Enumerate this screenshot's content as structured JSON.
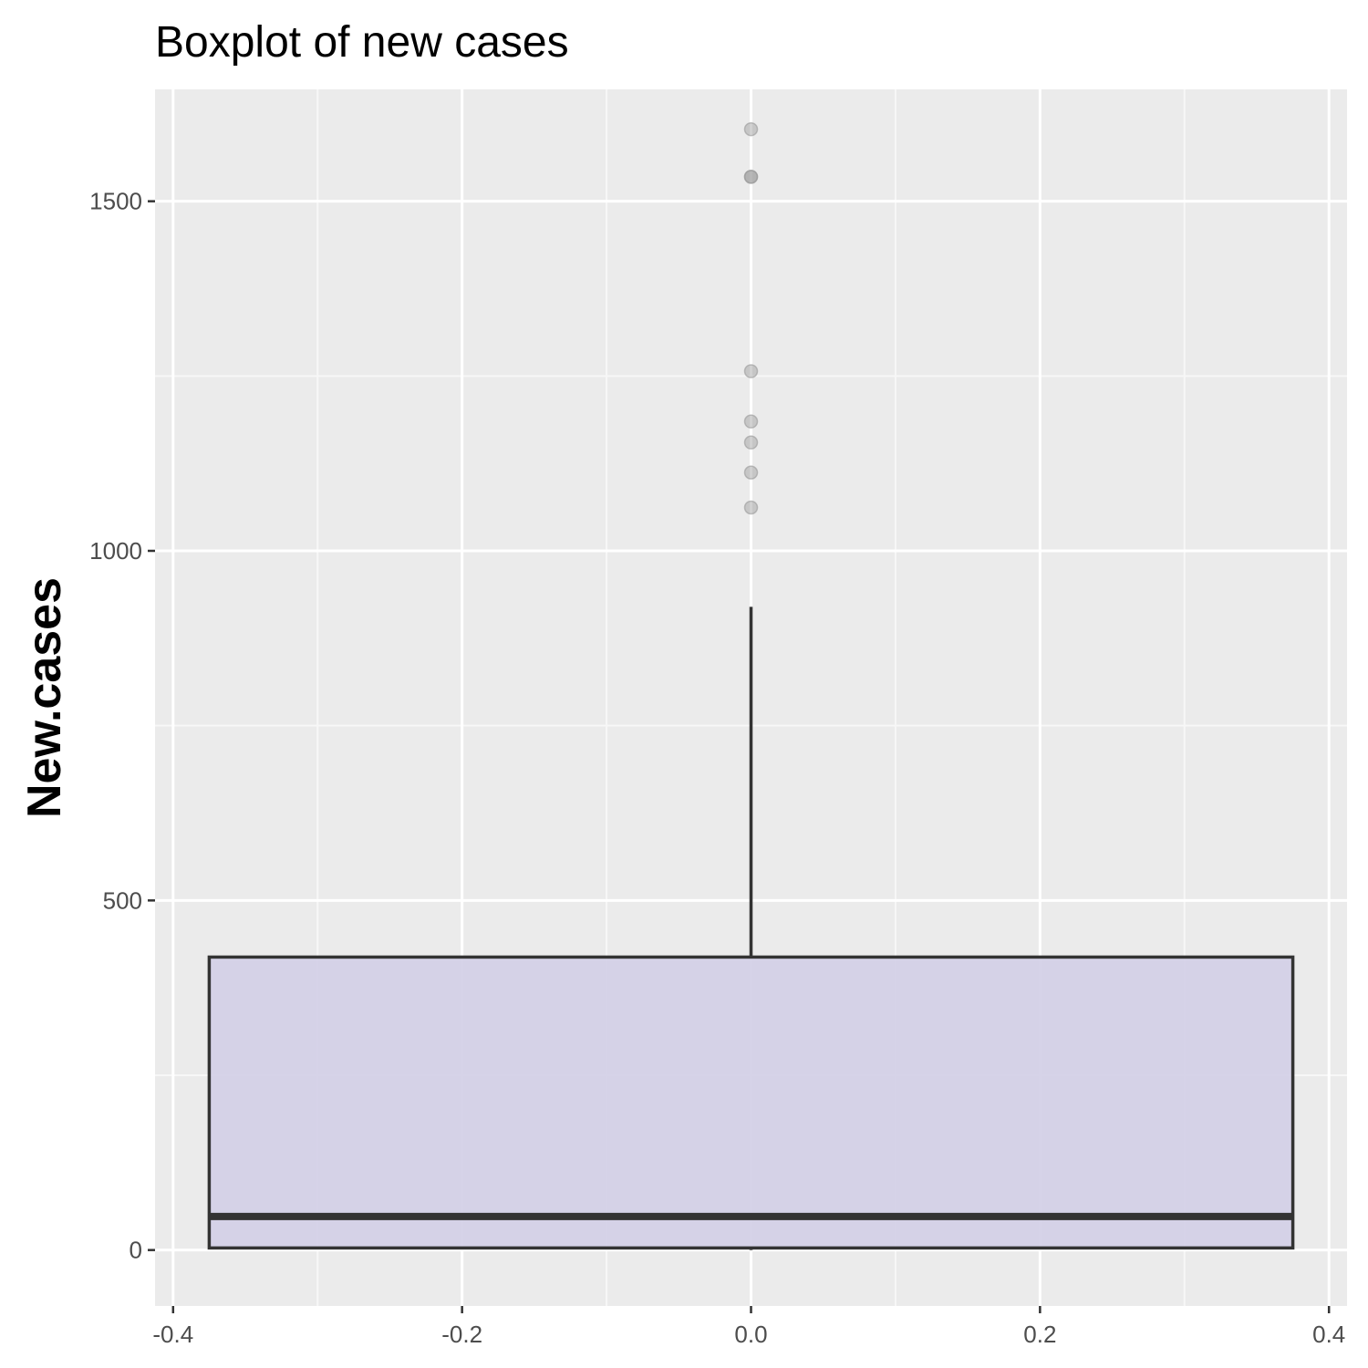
{
  "chart_data": {
    "type": "boxplot",
    "title": "Boxplot of new cases",
    "xlabel": "",
    "ylabel": "New.cases",
    "xlim": [
      -0.4125,
      0.4125
    ],
    "ylim": [
      -80,
      1660
    ],
    "x_ticks": [
      -0.4,
      -0.2,
      0.0,
      0.2,
      0.4
    ],
    "x_tick_labels": [
      "-0.4",
      "-0.2",
      "0.0",
      "0.2",
      "0.4"
    ],
    "y_ticks": [
      0,
      500,
      1000,
      1500
    ],
    "y_tick_labels": [
      "0",
      "500",
      "1000",
      "1500"
    ],
    "grid": true,
    "box": {
      "x_center": 0.0,
      "x_min": -0.375,
      "x_max": 0.375,
      "min": 0,
      "q1": 3,
      "median": 48,
      "q3": 419,
      "whisker_high": 920,
      "outliers": [
        1603,
        1535,
        1535,
        1257,
        1185,
        1155,
        1112,
        1062
      ]
    },
    "colors": {
      "panel_background": "#ebebeb",
      "grid_major": "#ffffff",
      "grid_minor": "#f7f7f7",
      "box_fill": "#d3cfe6",
      "box_line": "#333333",
      "outlier": "#999999",
      "tick_text": "#4d4d4d",
      "title_text": "#000000"
    }
  }
}
